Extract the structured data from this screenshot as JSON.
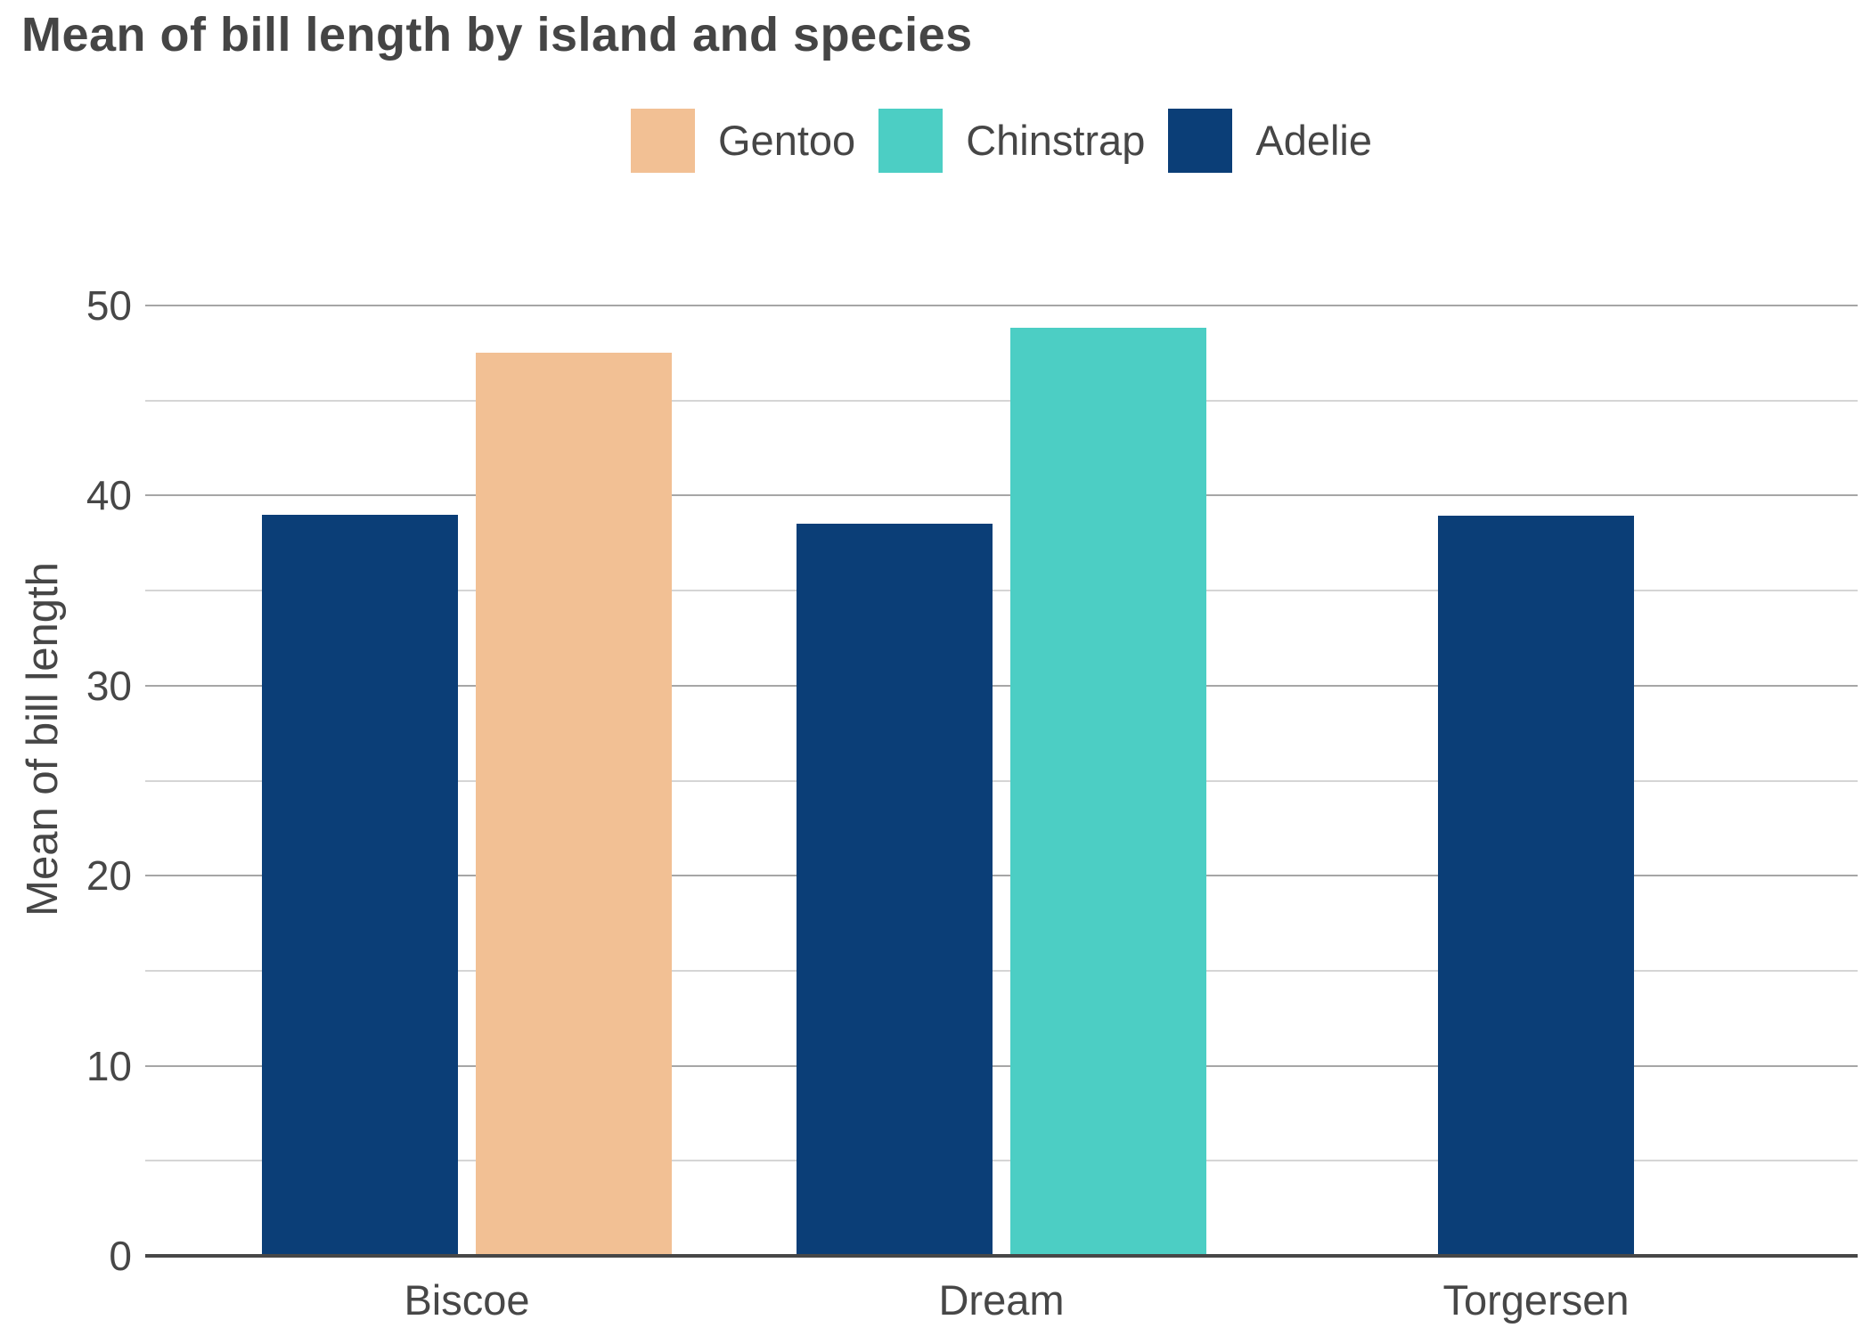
{
  "title": "Mean of bill length by island and species",
  "y_axis_title": "Mean of bill length",
  "colors": {
    "gentoo": "#F2C094",
    "chinstrap": "#4CCEC4",
    "adelie": "#0B3E77",
    "title_text": "#454545",
    "axis_text": "#474747",
    "major_gridline": "#a6a6a6",
    "minor_gridline": "#d5d5d5",
    "axis_line": "#474747"
  },
  "legend": {
    "items": [
      {
        "label": "Gentoo",
        "color_key": "gentoo"
      },
      {
        "label": "Chinstrap",
        "color_key": "chinstrap"
      },
      {
        "label": "Adelie",
        "color_key": "adelie"
      }
    ]
  },
  "chart_data": {
    "type": "bar",
    "title": "Mean of bill length by island and species",
    "xlabel": "",
    "ylabel": "Mean of bill length",
    "categories": [
      "Biscoe",
      "Dream",
      "Torgersen"
    ],
    "series": [
      {
        "name": "Gentoo",
        "color_key": "gentoo",
        "values": [
          47.5,
          null,
          null
        ]
      },
      {
        "name": "Chinstrap",
        "color_key": "chinstrap",
        "values": [
          null,
          48.83,
          null
        ]
      },
      {
        "name": "Adelie",
        "color_key": "adelie",
        "values": [
          38.98,
          38.5,
          38.95
        ]
      }
    ],
    "bars": [
      {
        "category": "Biscoe",
        "series": "Adelie",
        "color_key": "adelie",
        "value": 38.98,
        "slot": "left"
      },
      {
        "category": "Biscoe",
        "series": "Gentoo",
        "color_key": "gentoo",
        "value": 47.5,
        "slot": "right"
      },
      {
        "category": "Dream",
        "series": "Adelie",
        "color_key": "adelie",
        "value": 38.5,
        "slot": "left"
      },
      {
        "category": "Dream",
        "series": "Chinstrap",
        "color_key": "chinstrap",
        "value": 48.83,
        "slot": "right"
      },
      {
        "category": "Torgersen",
        "series": "Adelie",
        "color_key": "adelie",
        "value": 38.95,
        "slot": "center"
      }
    ],
    "ylim": [
      0,
      50
    ],
    "y_major_tick_step": 10,
    "y_minor_grid_step": 5,
    "y_tick_labels": [
      "0",
      "10",
      "20",
      "30",
      "40",
      "50"
    ],
    "grid": true,
    "legend_position": "top-center"
  }
}
